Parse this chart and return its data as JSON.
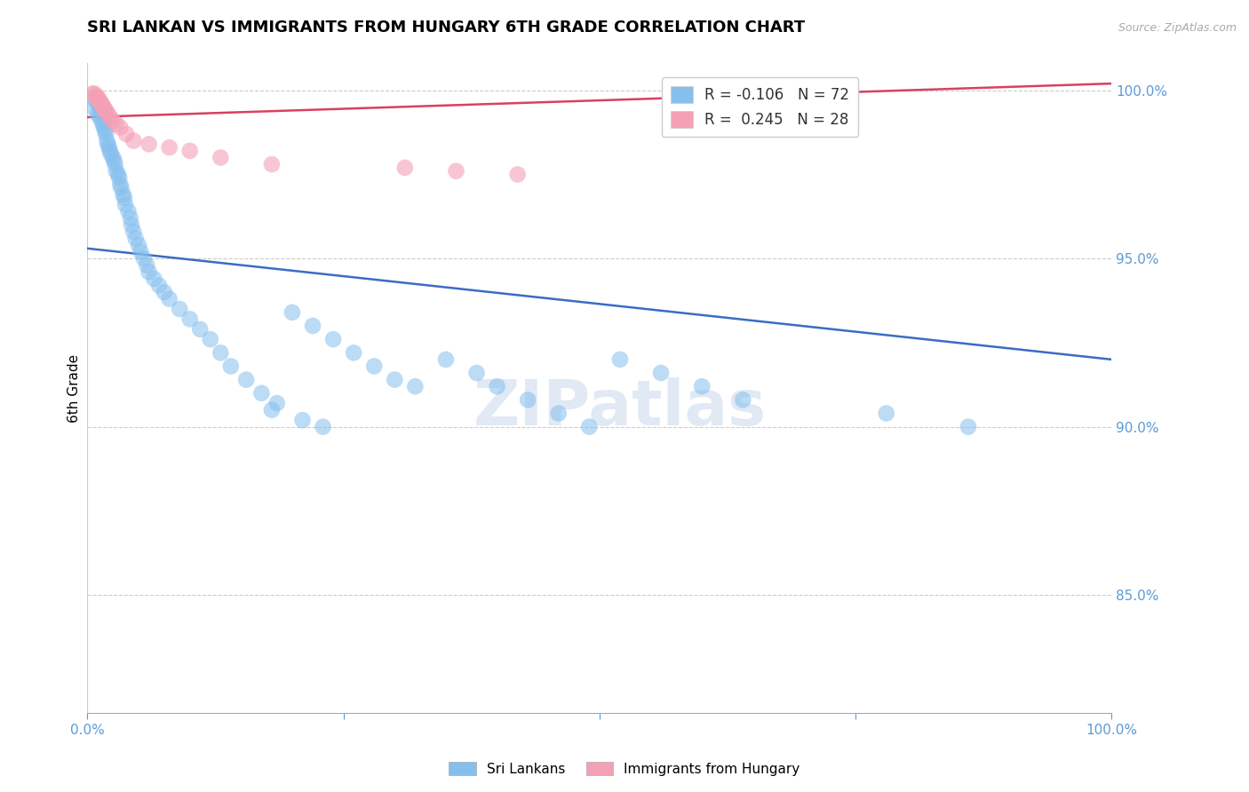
{
  "title": "SRI LANKAN VS IMMIGRANTS FROM HUNGARY 6TH GRADE CORRELATION CHART",
  "source_text": "Source: ZipAtlas.com",
  "ylabel": "6th Grade",
  "r_blue": -0.106,
  "n_blue": 72,
  "r_pink": 0.245,
  "n_pink": 28,
  "blue_color": "#85BFEE",
  "pink_color": "#F4A0B5",
  "blue_line_color": "#3A6CC4",
  "pink_line_color": "#D94060",
  "xlim": [
    0.0,
    1.0
  ],
  "ylim": [
    0.815,
    1.008
  ],
  "yticks": [
    0.85,
    0.9,
    0.95,
    1.0
  ],
  "ytick_labels": [
    "85.0%",
    "90.0%",
    "95.0%",
    "100.0%"
  ],
  "blue_x": [
    0.005,
    0.008,
    0.01,
    0.01,
    0.012,
    0.013,
    0.014,
    0.015,
    0.016,
    0.017,
    0.018,
    0.019,
    0.02,
    0.021,
    0.022,
    0.023,
    0.025,
    0.026,
    0.027,
    0.028,
    0.03,
    0.031,
    0.032,
    0.033,
    0.035,
    0.036,
    0.037,
    0.04,
    0.042,
    0.043,
    0.045,
    0.047,
    0.05,
    0.052,
    0.055,
    0.058,
    0.06,
    0.065,
    0.07,
    0.075,
    0.08,
    0.09,
    0.1,
    0.11,
    0.12,
    0.13,
    0.14,
    0.155,
    0.17,
    0.185,
    0.2,
    0.22,
    0.24,
    0.26,
    0.28,
    0.3,
    0.32,
    0.35,
    0.38,
    0.4,
    0.43,
    0.46,
    0.49,
    0.52,
    0.56,
    0.6,
    0.64,
    0.18,
    0.21,
    0.23,
    0.78,
    0.86
  ],
  "blue_y": [
    0.995,
    0.997,
    0.993,
    0.996,
    0.992,
    0.994,
    0.991,
    0.99,
    0.989,
    0.988,
    0.987,
    0.985,
    0.984,
    0.983,
    0.982,
    0.981,
    0.98,
    0.979,
    0.978,
    0.976,
    0.975,
    0.974,
    0.972,
    0.971,
    0.969,
    0.968,
    0.966,
    0.964,
    0.962,
    0.96,
    0.958,
    0.956,
    0.954,
    0.952,
    0.95,
    0.948,
    0.946,
    0.944,
    0.942,
    0.94,
    0.938,
    0.935,
    0.932,
    0.929,
    0.926,
    0.922,
    0.918,
    0.914,
    0.91,
    0.907,
    0.934,
    0.93,
    0.926,
    0.922,
    0.918,
    0.914,
    0.912,
    0.92,
    0.916,
    0.912,
    0.908,
    0.904,
    0.9,
    0.92,
    0.916,
    0.912,
    0.908,
    0.905,
    0.902,
    0.9,
    0.904,
    0.9
  ],
  "pink_x": [
    0.005,
    0.007,
    0.008,
    0.009,
    0.01,
    0.011,
    0.012,
    0.013,
    0.014,
    0.015,
    0.016,
    0.017,
    0.018,
    0.02,
    0.022,
    0.025,
    0.028,
    0.032,
    0.038,
    0.045,
    0.06,
    0.08,
    0.1,
    0.13,
    0.18,
    0.31,
    0.36,
    0.42
  ],
  "pink_y": [
    0.999,
    0.999,
    0.998,
    0.998,
    0.998,
    0.997,
    0.997,
    0.996,
    0.996,
    0.995,
    0.995,
    0.994,
    0.994,
    0.993,
    0.992,
    0.991,
    0.99,
    0.989,
    0.987,
    0.985,
    0.984,
    0.983,
    0.982,
    0.98,
    0.978,
    0.977,
    0.976,
    0.975
  ],
  "blue_trendline_x": [
    0.0,
    1.0
  ],
  "blue_trendline_y": [
    0.953,
    0.92
  ],
  "pink_trendline_x": [
    0.0,
    1.0
  ],
  "pink_trendline_y": [
    0.992,
    1.002
  ]
}
